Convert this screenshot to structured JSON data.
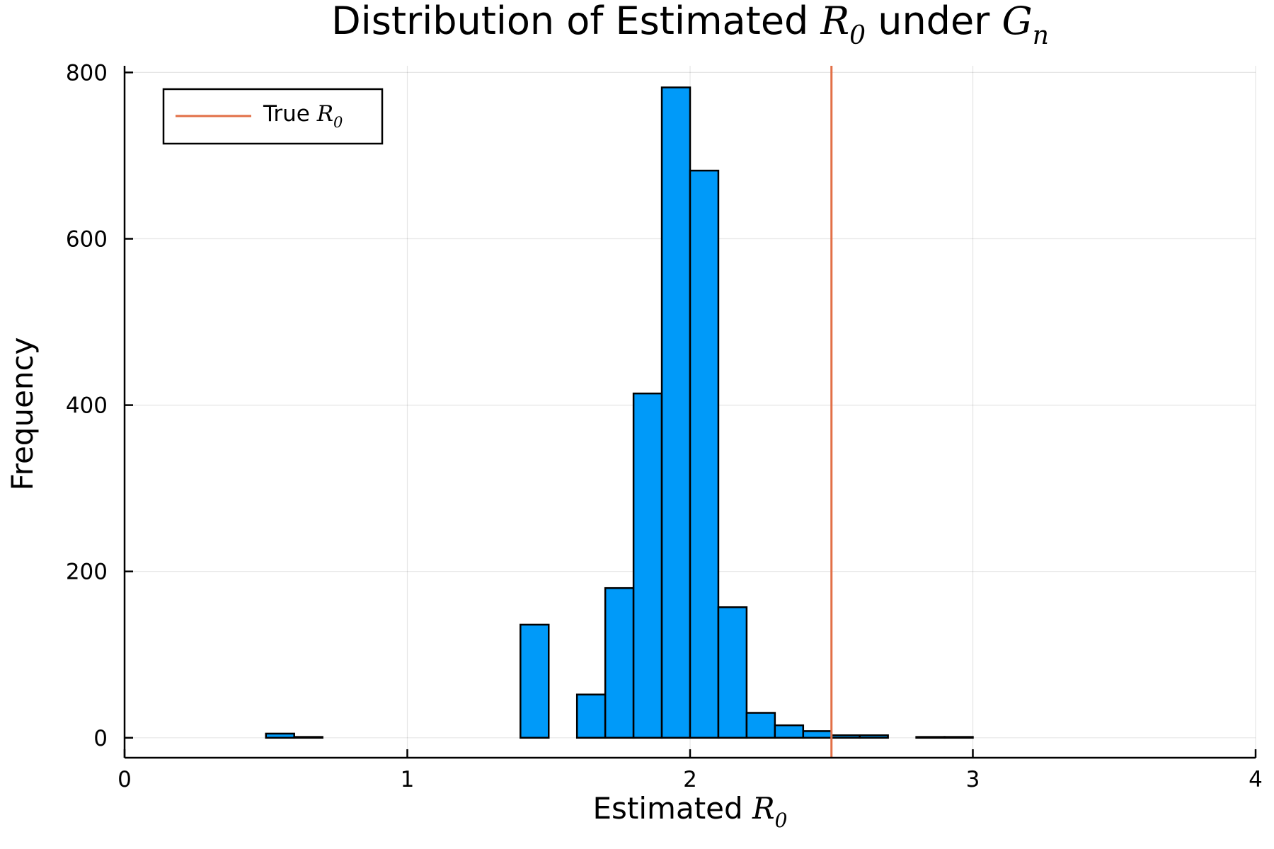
{
  "chart_data": {
    "type": "bar",
    "title": {
      "prefix": "Distribution of Estimated ",
      "var1": "R",
      "var1_sub": "0",
      "middle": " under ",
      "var2": "G",
      "var2_sub": "n"
    },
    "xlabel": {
      "text": "Estimated ",
      "var": "R",
      "var_sub": "0"
    },
    "ylabel": "Frequency",
    "xlim": [
      0,
      4
    ],
    "ylim": [
      -24,
      808
    ],
    "xticks": [
      0,
      1,
      2,
      3,
      4
    ],
    "yticks": [
      0,
      200,
      400,
      600,
      800
    ],
    "grid": true,
    "bin_width": 0.1,
    "bin_starts": [
      0.0,
      0.1,
      0.2,
      0.3,
      0.4,
      0.5,
      0.6,
      0.7,
      0.8,
      0.9,
      1.0,
      1.1,
      1.2,
      1.3,
      1.4,
      1.5,
      1.6,
      1.7,
      1.8,
      1.9,
      2.0,
      2.1,
      2.2,
      2.3,
      2.4,
      2.5,
      2.6,
      2.7,
      2.8,
      2.9
    ],
    "values": [
      0,
      0,
      0,
      0,
      0,
      5,
      1,
      0,
      0,
      0,
      0,
      0,
      0,
      0,
      136,
      0,
      52,
      180,
      414,
      782,
      682,
      157,
      30,
      15,
      8,
      3,
      3,
      0,
      1,
      1
    ],
    "bar_color": "#009af9",
    "true_r0": 2.5,
    "true_line_color": "#e26f46",
    "legend": {
      "position": "top-left",
      "label_text": "True ",
      "label_var": "R",
      "label_sub": "0"
    }
  }
}
